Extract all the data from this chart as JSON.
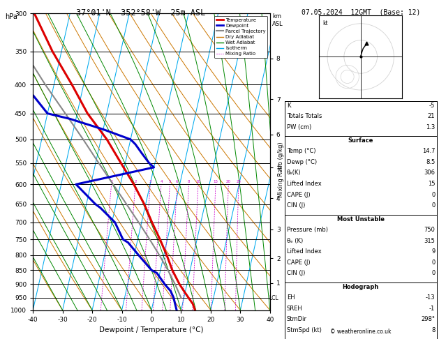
{
  "title_left": "37°01'N  352°58'W  25m ASL",
  "title_right": "07.05.2024  12GMT  (Base: 12)",
  "xlabel": "Dewpoint / Temperature (°C)",
  "ylabel_left": "hPa",
  "pressure_levels": [
    300,
    350,
    400,
    450,
    500,
    550,
    600,
    650,
    700,
    750,
    800,
    850,
    900,
    950,
    1000
  ],
  "temp_range_min": -40,
  "temp_range_max": 40,
  "km_ticks": [
    1,
    2,
    3,
    4,
    5,
    6,
    7,
    8
  ],
  "km_pressures": [
    895,
    810,
    720,
    635,
    560,
    490,
    425,
    360
  ],
  "temperature_profile": {
    "pressure": [
      1000,
      975,
      950,
      925,
      900,
      850,
      800,
      750,
      700,
      650,
      600,
      550,
      500,
      450,
      400,
      350,
      300
    ],
    "temp": [
      14.7,
      13.5,
      11.5,
      9.5,
      7.5,
      4.0,
      1.0,
      -2.5,
      -6.5,
      -10.5,
      -15.5,
      -21.5,
      -28.0,
      -36.5,
      -44.0,
      -53.0,
      -62.0
    ]
  },
  "dewpoint_profile": {
    "pressure": [
      1000,
      975,
      950,
      925,
      900,
      860,
      850,
      800,
      760,
      750,
      700,
      660,
      650,
      600,
      560,
      550,
      530,
      510,
      500,
      480,
      460,
      450,
      400,
      350,
      300
    ],
    "temp": [
      8.5,
      7.5,
      6.5,
      5.0,
      2.5,
      -1.0,
      -3.0,
      -8.5,
      -13.0,
      -15.0,
      -19.0,
      -25.0,
      -27.0,
      -35.0,
      -10.0,
      -12.0,
      -15.0,
      -18.0,
      -20.0,
      -30.0,
      -42.0,
      -50.0,
      -60.0,
      -68.0,
      -77.0
    ]
  },
  "parcel_profile": {
    "pressure": [
      950,
      900,
      850,
      800,
      750,
      700,
      650,
      600,
      550,
      500,
      450,
      400,
      350,
      300
    ],
    "temp": [
      9.0,
      6.0,
      2.5,
      -1.5,
      -6.0,
      -11.0,
      -16.5,
      -22.5,
      -29.0,
      -36.0,
      -44.0,
      -53.0,
      -62.5,
      -72.5
    ]
  },
  "lcl_pressure": 953,
  "mixing_ratio_vals": [
    1,
    2,
    3,
    4,
    5,
    6,
    8,
    10,
    15,
    20,
    25
  ],
  "stats": {
    "K": "-5",
    "Totals Totals": "21",
    "PW (cm)": "1.3",
    "Surface": {
      "Temp (C)": "14.7",
      "Dewp (C)": "8.5",
      "theta_e_K": "306",
      "Lifted Index": "15",
      "CAPE (J)": "0",
      "CIN (J)": "0"
    },
    "Most Unstable": {
      "Pressure (mb)": "750",
      "theta_e_K": "315",
      "Lifted Index": "9",
      "CAPE (J)": "0",
      "CIN (J)": "0"
    },
    "Hodograph": {
      "EH": "-13",
      "SREH": "-1",
      "StmDir": "298°",
      "StmSpd (kt)": "8"
    }
  },
  "colors": {
    "temperature": "#dd0000",
    "dewpoint": "#0000cc",
    "parcel": "#888888",
    "dry_adiabat": "#cc7700",
    "wet_adiabat": "#008800",
    "isotherm": "#00aaee",
    "mixing_ratio": "#cc00cc",
    "background": "#ffffff",
    "grid": "#000000"
  },
  "skew": 22.5,
  "P_min": 300,
  "P_max": 1000
}
